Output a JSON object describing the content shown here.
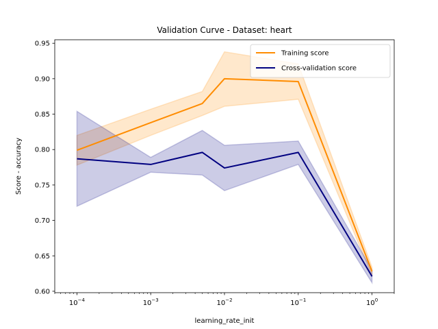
{
  "chart_data": {
    "type": "line",
    "title": "Validation Curve - Dataset: heart",
    "xlabel": "learning_rate_init",
    "ylabel": "Score - accuracy",
    "x_scale": "log",
    "x": [
      0.0001,
      0.001,
      0.005,
      0.01,
      0.1,
      1.0
    ],
    "xlim": [
      5e-05,
      2.0
    ],
    "ylim": [
      0.598,
      0.955
    ],
    "x_ticks": [
      {
        "value": 0.0001,
        "base": "10",
        "exp": "−4"
      },
      {
        "value": 0.001,
        "base": "10",
        "exp": "−3"
      },
      {
        "value": 0.01,
        "base": "10",
        "exp": "−2"
      },
      {
        "value": 0.1,
        "base": "10",
        "exp": "−1"
      },
      {
        "value": 1.0,
        "base": "10",
        "exp": "0"
      }
    ],
    "y_ticks": [
      {
        "value": 0.6,
        "label": "0.60"
      },
      {
        "value": 0.65,
        "label": "0.65"
      },
      {
        "value": 0.7,
        "label": "0.70"
      },
      {
        "value": 0.75,
        "label": "0.75"
      },
      {
        "value": 0.8,
        "label": "0.80"
      },
      {
        "value": 0.85,
        "label": "0.85"
      },
      {
        "value": 0.9,
        "label": "0.90"
      },
      {
        "value": 0.95,
        "label": "0.95"
      }
    ],
    "grid": false,
    "legend_position": "top-right",
    "series": [
      {
        "name": "Training score",
        "color": "#ff8c00",
        "band_color": "#ff8c00",
        "values": [
          0.799,
          0.838,
          0.865,
          0.9,
          0.896,
          0.628
        ],
        "band_lower": [
          0.778,
          0.82,
          0.848,
          0.861,
          0.871,
          0.622
        ],
        "band_upper": [
          0.82,
          0.857,
          0.882,
          0.938,
          0.921,
          0.634
        ]
      },
      {
        "name": "Cross-validation score",
        "color": "#000080",
        "band_color": "#000080",
        "values": [
          0.787,
          0.779,
          0.796,
          0.774,
          0.796,
          0.621
        ],
        "band_lower": [
          0.72,
          0.768,
          0.764,
          0.742,
          0.779,
          0.612
        ],
        "band_upper": [
          0.854,
          0.789,
          0.827,
          0.806,
          0.812,
          0.63
        ]
      }
    ]
  }
}
